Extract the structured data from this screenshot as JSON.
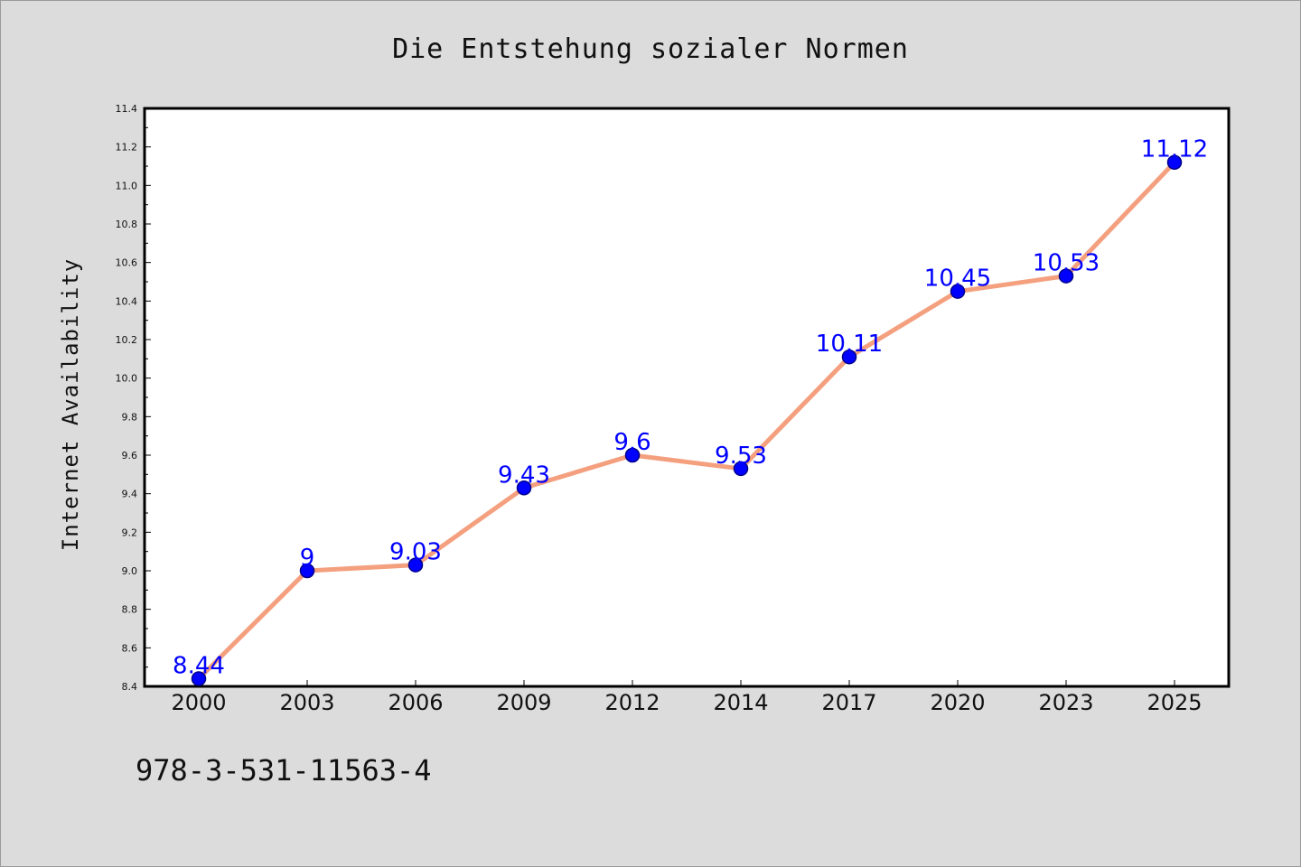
{
  "chart_data": {
    "type": "line",
    "title": "Die Entstehung sozialer Normen",
    "xlabel": "",
    "ylabel": "Internet Availability",
    "categories": [
      "2000",
      "2003",
      "2006",
      "2009",
      "2012",
      "2014",
      "2017",
      "2020",
      "2023",
      "2025"
    ],
    "series": [
      {
        "values": [
          8.44,
          9,
          9.03,
          9.43,
          9.6,
          9.53,
          10.11,
          10.45,
          10.53,
          11.12
        ],
        "labels": [
          "8.44",
          "9",
          "9.03",
          "9.43",
          "9.6",
          "9.53",
          "10.11",
          "10.45",
          "10.53",
          "11.12"
        ]
      }
    ],
    "ylim": [
      8.4,
      11.4
    ],
    "yticks": [
      "8.4",
      "8.6",
      "8.8",
      "9.0",
      "9.2",
      "9.4",
      "9.6",
      "9.8",
      "10.0",
      "10.2",
      "10.4",
      "10.6",
      "10.8",
      "11.0",
      "11.2",
      "11.4"
    ],
    "grid": false,
    "colors": {
      "line": "#f4a07f",
      "marker": "#0000ff",
      "marker_edge": "#00008b",
      "data_label": "#0000ff",
      "plot_background": "#ffffff",
      "figure_background": "#dcdcdc"
    }
  },
  "footer": {
    "isbn": "978-3-531-11563-4"
  }
}
